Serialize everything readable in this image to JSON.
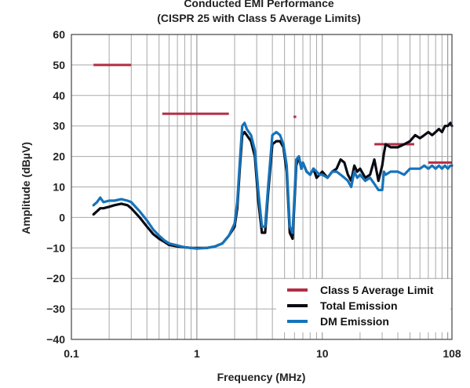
{
  "chart_data": {
    "type": "line",
    "title": "Conducted EMI Performance",
    "subtitle": "(CISPR 25 with Class 5 Average Limits)",
    "xlabel": "Frequency (MHz)",
    "ylabel": "Amplitude (dBµV)",
    "xscale": "log",
    "xlim": [
      0.1,
      108
    ],
    "ylim": [
      -40,
      60
    ],
    "xticks": [
      {
        "value": 0.1,
        "label": "0.1"
      },
      {
        "value": 1,
        "label": "1"
      },
      {
        "value": 10,
        "label": "10"
      },
      {
        "value": 108,
        "label": "108"
      }
    ],
    "yticks": [
      60,
      50,
      40,
      30,
      20,
      10,
      0,
      -10,
      -20,
      -30,
      -40
    ],
    "ytick_labels": [
      "60",
      "50",
      "40",
      "30",
      "20",
      "10",
      "0",
      "−10",
      "−20",
      "−30",
      "−40"
    ],
    "grid": true,
    "legend_position": "bottom-right",
    "limits": {
      "name": "Class 5 Average Limit",
      "color": "#b22e44",
      "segments": [
        {
          "x": [
            0.15,
            0.3
          ],
          "y": 50
        },
        {
          "x": [
            0.53,
            1.8
          ],
          "y": 34
        },
        {
          "x": [
            5.9,
            6.2
          ],
          "y": 33
        },
        {
          "x": [
            26,
            54
          ],
          "y": 24
        },
        {
          "x": [
            70,
            108
          ],
          "y": 18
        }
      ]
    },
    "series": [
      {
        "name": "Total Emission",
        "color": "#0a0a14",
        "x": [
          0.15,
          0.16,
          0.17,
          0.18,
          0.2,
          0.22,
          0.25,
          0.28,
          0.3,
          0.35,
          0.4,
          0.45,
          0.5,
          0.55,
          0.6,
          0.7,
          0.8,
          0.9,
          1,
          1.2,
          1.4,
          1.6,
          1.8,
          2,
          2.1,
          2.2,
          2.3,
          2.4,
          2.5,
          2.7,
          2.9,
          3.1,
          3.3,
          3.5,
          3.7,
          4,
          4.3,
          4.6,
          4.9,
          5.2,
          5.5,
          5.8,
          6,
          6.2,
          6.5,
          6.8,
          7,
          7.5,
          8,
          8.5,
          9,
          9.5,
          10,
          11,
          12,
          13,
          14,
          15,
          16,
          17,
          18,
          19,
          20,
          22,
          24,
          26,
          28,
          30,
          31,
          32,
          35,
          40,
          45,
          50,
          55,
          60,
          65,
          70,
          75,
          80,
          85,
          90,
          95,
          100,
          105,
          108
        ],
        "y": [
          1,
          2,
          3,
          3,
          3.5,
          4,
          4.5,
          4,
          3,
          0,
          -3,
          -5.5,
          -7,
          -8,
          -9,
          -9.5,
          -9.8,
          -10,
          -10,
          -10,
          -9.5,
          -8.5,
          -6,
          -3,
          3,
          16,
          27,
          28,
          27,
          25,
          20,
          5,
          -5,
          -5,
          8,
          24,
          25,
          25,
          23,
          15,
          -5,
          -7,
          5,
          17,
          20,
          16,
          18,
          15,
          14,
          16,
          13,
          14,
          15,
          13,
          15,
          16,
          19,
          18,
          14,
          12,
          17,
          15,
          16,
          13,
          14,
          19,
          12,
          17,
          21,
          24,
          23,
          23,
          24,
          25,
          27,
          26,
          27,
          28,
          27,
          28,
          29,
          28,
          30,
          30,
          31,
          30
        ]
      },
      {
        "name": "DM Emission",
        "color": "#1673ba",
        "x": [
          0.15,
          0.16,
          0.17,
          0.18,
          0.2,
          0.22,
          0.25,
          0.28,
          0.3,
          0.35,
          0.4,
          0.45,
          0.5,
          0.55,
          0.6,
          0.7,
          0.8,
          0.9,
          1,
          1.2,
          1.4,
          1.6,
          1.8,
          2,
          2.1,
          2.2,
          2.3,
          2.4,
          2.5,
          2.7,
          2.9,
          3.1,
          3.3,
          3.5,
          3.7,
          4,
          4.3,
          4.6,
          4.9,
          5.2,
          5.5,
          5.8,
          6,
          6.2,
          6.5,
          6.8,
          7,
          7.5,
          8,
          8.5,
          9,
          9.5,
          10,
          11,
          12,
          13,
          14,
          15,
          16,
          17,
          18,
          19,
          20,
          22,
          24,
          26,
          28,
          30,
          31,
          32,
          35,
          40,
          45,
          50,
          55,
          60,
          65,
          70,
          75,
          80,
          85,
          90,
          95,
          100,
          105,
          108
        ],
        "y": [
          4,
          5,
          6.5,
          5,
          5.5,
          5.5,
          6,
          5.5,
          5,
          2,
          -1,
          -4,
          -6,
          -7.5,
          -8.5,
          -9.2,
          -9.8,
          -10,
          -10.2,
          -10,
          -9.5,
          -8.5,
          -6,
          -2,
          5,
          18,
          30,
          31,
          29,
          27,
          22,
          8,
          -3,
          -3,
          10,
          27,
          28,
          27,
          24,
          17,
          -3,
          -5,
          7,
          19,
          20,
          16,
          18,
          15,
          14,
          16,
          15,
          14,
          14,
          13,
          15,
          15,
          14,
          13,
          12,
          10,
          15,
          13,
          14,
          12,
          13,
          11,
          9,
          9,
          15,
          14,
          15,
          15,
          14,
          16,
          16,
          16,
          17,
          16,
          17,
          16,
          17,
          16,
          17,
          16,
          17,
          17
        ]
      }
    ]
  }
}
